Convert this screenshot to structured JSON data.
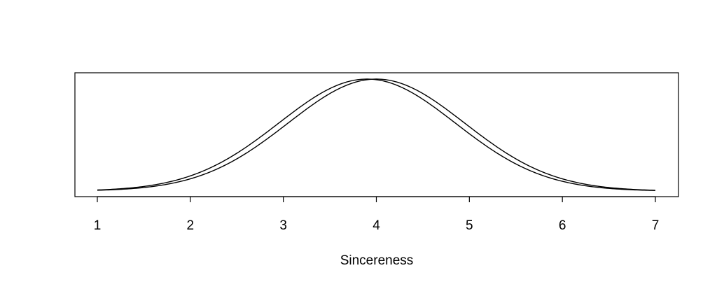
{
  "chart_data": {
    "type": "line",
    "title": "",
    "xlabel": "Sincereness",
    "ylabel": "",
    "xlim": [
      1,
      7
    ],
    "x_ticks": [
      1,
      2,
      3,
      4,
      5,
      6,
      7
    ],
    "x_tick_labels": [
      "1",
      "2",
      "3",
      "4",
      "5",
      "6",
      "7"
    ],
    "ylim": [
      0,
      1
    ],
    "grid": false,
    "legend": "none",
    "series": [
      {
        "curve": "normal",
        "mean": 3.9,
        "sd": 0.95,
        "peak": 1.0
      },
      {
        "curve": "normal",
        "mean": 4.0,
        "sd": 0.95,
        "peak": 1.0
      }
    ]
  }
}
